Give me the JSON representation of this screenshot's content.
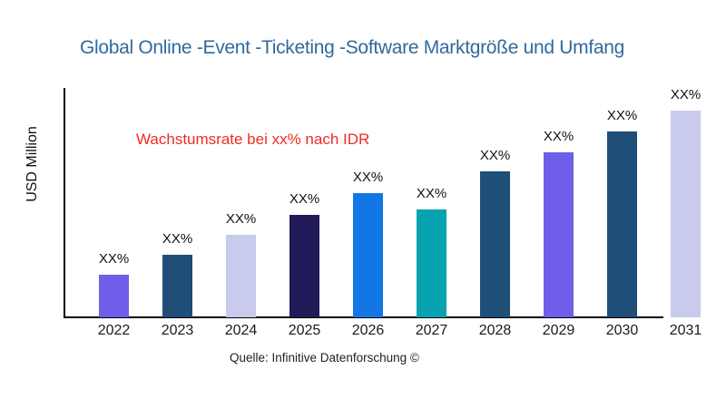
{
  "chart_data": {
    "type": "bar",
    "title": "Global Online -Event -Ticketing -Software Marktgröße und Umfang",
    "ylabel": "USD Million",
    "xlabel": "",
    "annotation": "Wachstumsrate bei xx% nach IDR",
    "source": "Quelle: Infinitive Datenforschung ©",
    "categories": [
      "2022",
      "2023",
      "2024",
      "2025",
      "2026",
      "2027",
      "2028",
      "2029",
      "2030",
      "2031"
    ],
    "value_labels": [
      "XX%",
      "XX%",
      "XX%",
      "XX%",
      "XX%",
      "XX%",
      "XX%",
      "XX%",
      "XX%",
      "XX%"
    ],
    "values_relative": [
      47,
      69,
      91,
      113,
      137,
      119,
      161,
      182,
      205,
      228
    ],
    "values_note": "numeric values are masked as XX% in the chart; values_relative are pixel-estimated bar heights (relative units)",
    "bar_colors": [
      "#6E5EE9",
      "#1F4E79",
      "#C8CBEC",
      "#201A57",
      "#1277E2",
      "#09A2B1",
      "#1F4E79",
      "#6E5EE9",
      "#1F4E79",
      "#C8CBEC"
    ],
    "grid": false,
    "legend": false,
    "y_tick_labels": [],
    "colors": {
      "title": "#2f6a9d",
      "annotation": "#f02b23",
      "axis": "#000000",
      "labels": "#111111"
    }
  }
}
